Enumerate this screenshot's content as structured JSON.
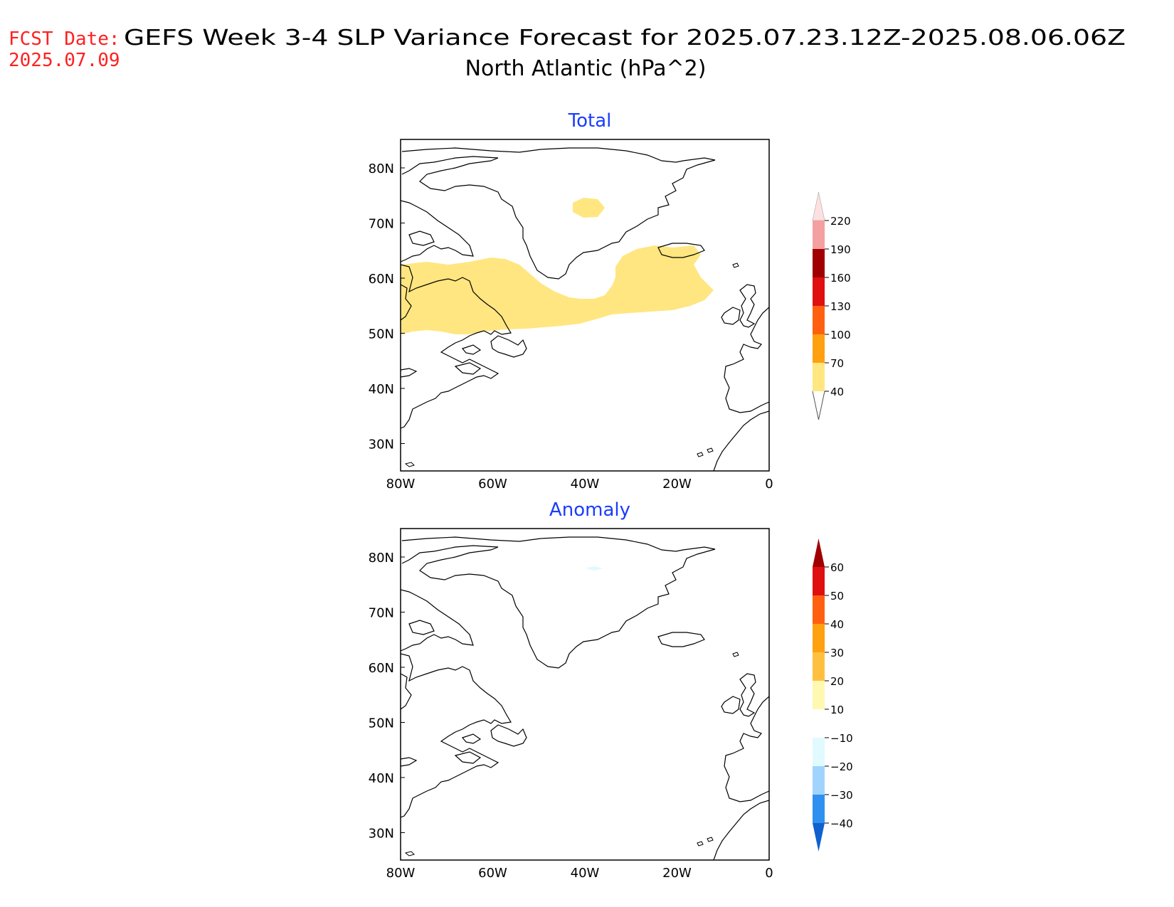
{
  "header": {
    "fcst_label": "FCST Date:",
    "fcst_date": "2025.07.09",
    "title_line1": "GEFS Week 3-4 SLP Variance Forecast for 2025.07.23.12Z-2025.08.06.06Z",
    "title_line2": "North Atlantic (hPa^2)"
  },
  "colors": {
    "header_red": "#ff2020",
    "panel_title_blue": "#1a3cff",
    "coast": "#000000"
  },
  "axes": {
    "lat_labels": [
      "80N",
      "70N",
      "60N",
      "50N",
      "40N",
      "30N"
    ],
    "lon_labels": [
      "80W",
      "60W",
      "40W",
      "20W",
      "0"
    ]
  },
  "panels": [
    {
      "id": "total",
      "title": "Total",
      "colorbar": {
        "labels": [
          "220",
          "190",
          "160",
          "130",
          "100",
          "70",
          "40"
        ],
        "colors": [
          "#fde0e0",
          "#f4a0a0",
          "#a00000",
          "#e01010",
          "#ff6010",
          "#ffa010",
          "#ffe680"
        ]
      }
    },
    {
      "id": "anomaly",
      "title": "Anomaly",
      "colorbar": {
        "labels": [
          "60",
          "50",
          "40",
          "30",
          "20",
          "10",
          "-10",
          "-20",
          "-30",
          "-40"
        ],
        "colors": [
          "#a00000",
          "#e01010",
          "#ff6010",
          "#ffa010",
          "#ffc040",
          "#fff8b0",
          "#ffffff",
          "#e0faff",
          "#a0d4ff",
          "#3090f0",
          "#1060d0"
        ]
      }
    }
  ]
}
